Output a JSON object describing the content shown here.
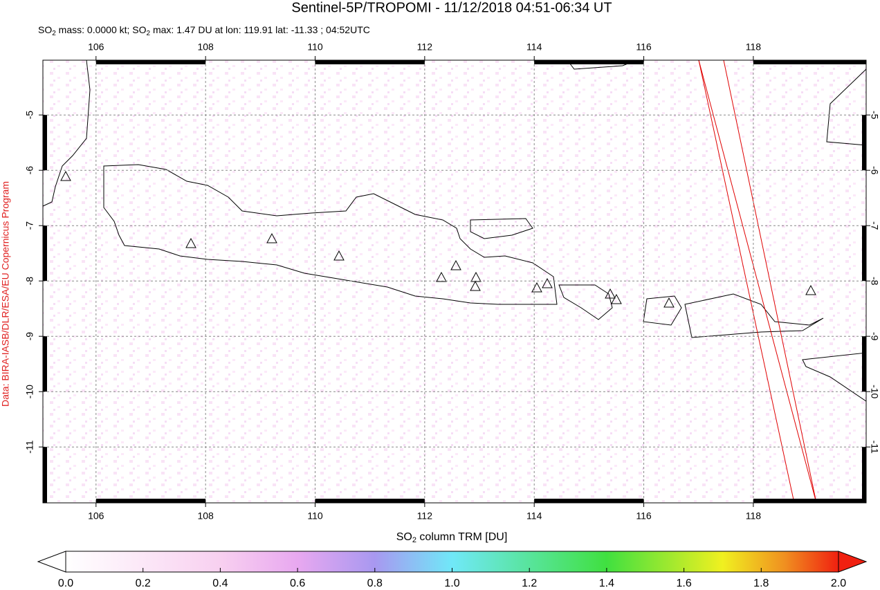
{
  "title": "Sentinel-5P/TROPOMI - 11/12/2018 04:51-06:34 UT",
  "subtitle": [
    "SO",
    "2",
    " mass: 0.0000 kt; SO",
    "2",
    " max: 1.47 DU at lon: 119.91 lat: -11.33 ; 04:52UTC"
  ],
  "credit": "Data: BIRA-IASB/DLR/ESA/EU Copernicus Program",
  "map": {
    "xlim": [
      105.03,
      120.06
    ],
    "ylim": [
      -12.01,
      -4.01
    ],
    "xticks": [
      106,
      108,
      110,
      112,
      114,
      116,
      118
    ],
    "yticks": [
      -5,
      -6,
      -7,
      -8,
      -9,
      -10,
      -11
    ],
    "grid": true
  },
  "colorbar": {
    "label": [
      "SO",
      "2",
      " column TRM [DU]"
    ],
    "lim": [
      0,
      2
    ],
    "ticks": [
      {
        "value": 0,
        "label": "0.0"
      },
      0.2,
      0.4,
      0.6,
      0.8,
      {
        "value": 1,
        "label": "1.0"
      },
      1.2,
      1.4,
      1.6,
      1.8,
      {
        "value": 2,
        "label": "2.0"
      }
    ]
  }
}
